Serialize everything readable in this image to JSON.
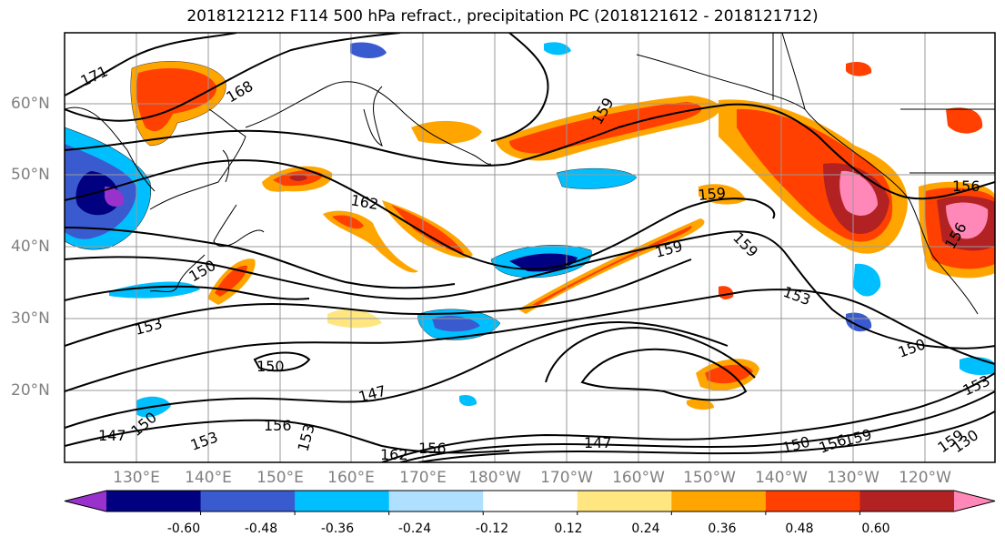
{
  "title": "2018121212 F114 500 hPa refract., precipitation PC (2018121612 - 2018121712)",
  "latitude_labels": [
    "60°N",
    "50°N",
    "40°N",
    "30°N",
    "20°N"
  ],
  "longitude_labels": [
    "130°E",
    "140°E",
    "150°E",
    "160°E",
    "170°E",
    "180°W",
    "170°W",
    "160°W",
    "150°W",
    "140°W",
    "130°W",
    "120°W"
  ],
  "contour_labels": [
    "171",
    "168",
    "162",
    "159",
    "159",
    "159",
    "159",
    "156",
    "156",
    "153",
    "153",
    "153",
    "153",
    "153",
    "150",
    "150",
    "150",
    "150",
    "150",
    "147",
    "147",
    "147",
    "156",
    "156",
    "156",
    "159",
    "159",
    "162",
    "130"
  ],
  "colorbar": {
    "tick_labels": [
      "-0.60",
      "-0.48",
      "-0.36",
      "-0.24",
      "-0.12",
      "0.12",
      "0.24",
      "0.36",
      "0.48",
      "0.60"
    ],
    "colors": [
      "#9932cc",
      "#000080",
      "#3a5bd0",
      "#00bfff",
      "#b0e0ff",
      "#ffffff",
      "#ffe680",
      "#ffa500",
      "#ff4000",
      "#b22222",
      "#ff88b8"
    ]
  }
}
